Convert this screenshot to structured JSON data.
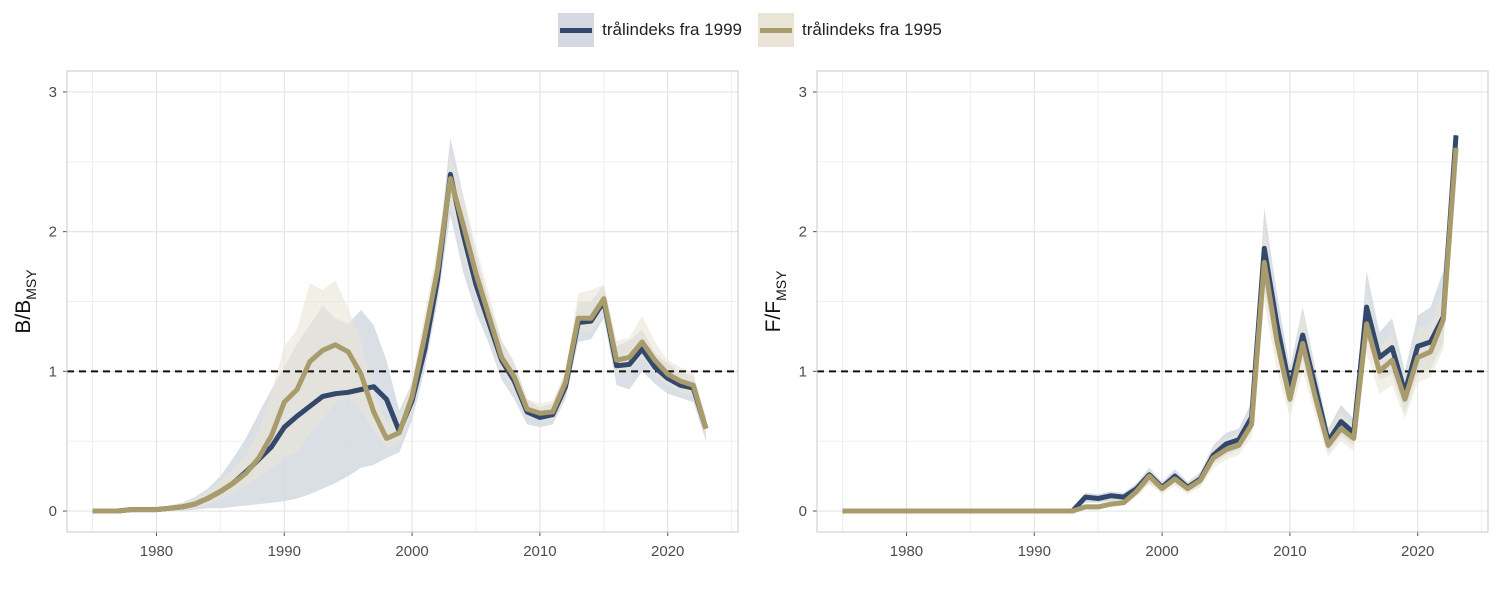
{
  "legend": {
    "items": [
      {
        "label": "trålindeks fra 1999",
        "color": "#34486b",
        "ribbon": "#d4d9e1"
      },
      {
        "label": "trålindeks fra 1995",
        "color": "#a89c6c",
        "ribbon": "#e9e4d6"
      }
    ]
  },
  "chart_data": [
    {
      "type": "line",
      "title": "",
      "ylabel_main": "B/B",
      "ylabel_sub": "MSY",
      "xlim": [
        1973,
        2025.5
      ],
      "ylim": [
        -0.15,
        3.15
      ],
      "x_ticks": [
        1980,
        1990,
        2000,
        2010,
        2020
      ],
      "y_ticks": [
        0,
        1,
        2,
        3
      ],
      "reference_line": 1,
      "grid": true,
      "legend_position": "top",
      "x": [
        1975,
        1976,
        1977,
        1978,
        1979,
        1980,
        1981,
        1982,
        1983,
        1984,
        1985,
        1986,
        1987,
        1988,
        1989,
        1990,
        1991,
        1992,
        1993,
        1994,
        1995,
        1996,
        1997,
        1998,
        1999,
        2000,
        2001,
        2002,
        2003,
        2004,
        2005,
        2006,
        2007,
        2008,
        2009,
        2010,
        2011,
        2012,
        2013,
        2014,
        2015,
        2016,
        2017,
        2018,
        2019,
        2020,
        2021,
        2022,
        2023
      ],
      "series": [
        {
          "name": "trålindeks fra 1999",
          "color": "#34486b",
          "values": [
            0,
            0,
            0,
            0.01,
            0.01,
            0.01,
            0.02,
            0.03,
            0.05,
            0.09,
            0.14,
            0.2,
            0.28,
            0.37,
            0.46,
            0.6,
            0.68,
            0.75,
            0.82,
            0.84,
            0.85,
            0.87,
            0.89,
            0.8,
            0.57,
            0.79,
            1.16,
            1.66,
            2.41,
            1.98,
            1.62,
            1.35,
            1.08,
            0.93,
            0.71,
            0.67,
            0.69,
            0.89,
            1.35,
            1.36,
            1.5,
            1.04,
            1.05,
            1.16,
            1.03,
            0.95,
            0.9,
            0.88,
            0.59
          ],
          "lower": [
            0,
            0,
            0,
            0,
            0,
            0,
            0,
            0,
            0.01,
            0.02,
            0.02,
            0.03,
            0.04,
            0.05,
            0.06,
            0.07,
            0.09,
            0.12,
            0.16,
            0.2,
            0.25,
            0.31,
            0.33,
            0.38,
            0.42,
            0.65,
            1.02,
            1.5,
            2.12,
            1.71,
            1.42,
            1.2,
            0.94,
            0.8,
            0.62,
            0.6,
            0.62,
            0.8,
            1.21,
            1.23,
            1.38,
            0.9,
            0.87,
            1.0,
            0.91,
            0.84,
            0.81,
            0.78,
            0.5
          ],
          "upper": [
            0.01,
            0.01,
            0.01,
            0.02,
            0.02,
            0.03,
            0.04,
            0.06,
            0.1,
            0.16,
            0.25,
            0.38,
            0.52,
            0.7,
            0.87,
            1.03,
            1.2,
            1.33,
            1.47,
            1.38,
            1.34,
            1.44,
            1.33,
            1.08,
            0.72,
            0.92,
            1.3,
            1.82,
            2.67,
            2.26,
            1.84,
            1.5,
            1.22,
            1.06,
            0.8,
            0.74,
            0.77,
            0.99,
            1.5,
            1.5,
            1.62,
            1.18,
            1.22,
            1.3,
            1.13,
            1.06,
            0.99,
            0.97,
            0.67
          ]
        },
        {
          "name": "trålindeks fra 1995",
          "color": "#a89c6c",
          "values": [
            0,
            0,
            0,
            0.01,
            0.01,
            0.01,
            0.02,
            0.03,
            0.05,
            0.09,
            0.14,
            0.2,
            0.27,
            0.38,
            0.54,
            0.78,
            0.87,
            1.07,
            1.15,
            1.19,
            1.14,
            0.98,
            0.71,
            0.52,
            0.56,
            0.82,
            1.26,
            1.73,
            2.38,
            2.05,
            1.7,
            1.4,
            1.1,
            0.96,
            0.73,
            0.7,
            0.71,
            0.92,
            1.38,
            1.38,
            1.52,
            1.08,
            1.1,
            1.21,
            1.08,
            0.98,
            0.93,
            0.9,
            0.59
          ],
          "lower": [
            0,
            0,
            0,
            0,
            0,
            0,
            0,
            0.01,
            0.02,
            0.05,
            0.08,
            0.13,
            0.18,
            0.24,
            0.3,
            0.38,
            0.42,
            0.56,
            0.65,
            0.78,
            0.81,
            0.72,
            0.58,
            0.45,
            0.48,
            0.7,
            1.1,
            1.58,
            2.2,
            1.84,
            1.54,
            1.28,
            0.99,
            0.88,
            0.68,
            0.66,
            0.65,
            0.85,
            1.29,
            1.28,
            1.4,
            0.98,
            1.0,
            1.1,
            0.98,
            0.9,
            0.85,
            0.82,
            0.52
          ],
          "upper": [
            0.01,
            0.01,
            0.01,
            0.02,
            0.02,
            0.03,
            0.04,
            0.06,
            0.09,
            0.14,
            0.21,
            0.3,
            0.4,
            0.58,
            0.85,
            1.18,
            1.3,
            1.63,
            1.58,
            1.65,
            1.45,
            1.22,
            0.86,
            0.64,
            0.66,
            0.94,
            1.42,
            1.9,
            2.56,
            2.26,
            1.9,
            1.56,
            1.22,
            1.07,
            0.8,
            0.77,
            0.79,
            1.0,
            1.56,
            1.58,
            1.62,
            1.22,
            1.24,
            1.4,
            1.21,
            1.08,
            1.03,
            0.99,
            0.66
          ]
        }
      ]
    },
    {
      "type": "line",
      "title": "",
      "ylabel_main": "F/F",
      "ylabel_sub": "MSY",
      "xlim": [
        1973,
        2025.5
      ],
      "ylim": [
        -0.15,
        3.15
      ],
      "x_ticks": [
        1980,
        1990,
        2000,
        2010,
        2020
      ],
      "y_ticks": [
        0,
        1,
        2,
        3
      ],
      "reference_line": 1,
      "grid": true,
      "legend_position": "top",
      "x": [
        1975,
        1976,
        1977,
        1978,
        1979,
        1980,
        1981,
        1982,
        1983,
        1984,
        1985,
        1986,
        1987,
        1988,
        1989,
        1990,
        1991,
        1992,
        1993,
        1994,
        1995,
        1996,
        1997,
        1998,
        1999,
        2000,
        2001,
        2002,
        2003,
        2004,
        2005,
        2006,
        2007,
        2008,
        2009,
        2010,
        2011,
        2012,
        2013,
        2014,
        2015,
        2016,
        2017,
        2018,
        2019,
        2020,
        2021,
        2022,
        2023
      ],
      "series": [
        {
          "name": "trålindeks fra 1999",
          "color": "#34486b",
          "values": [
            0,
            0,
            0,
            0,
            0,
            0,
            0,
            0,
            0,
            0,
            0,
            0,
            0,
            0,
            0,
            0,
            0,
            0,
            0,
            0.1,
            0.09,
            0.11,
            0.1,
            0.16,
            0.26,
            0.17,
            0.25,
            0.17,
            0.23,
            0.4,
            0.48,
            0.51,
            0.67,
            1.88,
            1.33,
            0.88,
            1.26,
            0.88,
            0.5,
            0.64,
            0.56,
            1.46,
            1.1,
            1.17,
            0.85,
            1.18,
            1.21,
            1.39,
            2.69
          ],
          "lower": [
            0,
            0,
            0,
            0,
            0,
            0,
            0,
            0,
            0,
            0,
            0,
            0,
            0,
            0,
            0,
            0,
            0,
            0,
            0,
            0.06,
            0.06,
            0.07,
            0.07,
            0.12,
            0.2,
            0.14,
            0.2,
            0.14,
            0.18,
            0.34,
            0.4,
            0.44,
            0.57,
            1.58,
            1.12,
            0.74,
            1.08,
            0.74,
            0.42,
            0.54,
            0.47,
            1.24,
            0.94,
            0.98,
            0.7,
            0.98,
            1.02,
            1.2,
            2.6
          ],
          "upper": [
            0,
            0,
            0,
            0,
            0,
            0,
            0,
            0,
            0,
            0,
            0,
            0,
            0,
            0,
            0,
            0,
            0,
            0,
            0,
            0.13,
            0.12,
            0.14,
            0.13,
            0.2,
            0.31,
            0.21,
            0.3,
            0.21,
            0.28,
            0.47,
            0.56,
            0.59,
            0.78,
            2.17,
            1.55,
            1.02,
            1.46,
            1.02,
            0.59,
            0.76,
            0.66,
            1.72,
            1.28,
            1.38,
            1.0,
            1.4,
            1.46,
            1.72,
            2.75
          ]
        },
        {
          "name": "trålindeks fra 1995",
          "color": "#a89c6c",
          "values": [
            0,
            0,
            0,
            0,
            0,
            0,
            0,
            0,
            0,
            0,
            0,
            0,
            0,
            0,
            0,
            0,
            0,
            0,
            0,
            0.03,
            0.03,
            0.05,
            0.06,
            0.14,
            0.25,
            0.16,
            0.23,
            0.16,
            0.22,
            0.38,
            0.44,
            0.47,
            0.62,
            1.78,
            1.21,
            0.8,
            1.2,
            0.81,
            0.47,
            0.59,
            0.52,
            1.34,
            1.0,
            1.08,
            0.8,
            1.1,
            1.14,
            1.37,
            2.6
          ],
          "lower": [
            0,
            0,
            0,
            0,
            0,
            0,
            0,
            0,
            0,
            0,
            0,
            0,
            0,
            0,
            0,
            0,
            0,
            0,
            0,
            0.01,
            0.01,
            0.03,
            0.04,
            0.1,
            0.19,
            0.12,
            0.18,
            0.12,
            0.17,
            0.31,
            0.37,
            0.4,
            0.53,
            1.5,
            1.0,
            0.67,
            1.0,
            0.68,
            0.39,
            0.5,
            0.43,
            1.13,
            0.84,
            0.9,
            0.66,
            0.92,
            0.96,
            1.16,
            2.5
          ],
          "upper": [
            0,
            0,
            0,
            0,
            0,
            0,
            0,
            0,
            0,
            0,
            0,
            0,
            0,
            0,
            0,
            0,
            0,
            0,
            0,
            0.05,
            0.05,
            0.07,
            0.08,
            0.18,
            0.3,
            0.2,
            0.28,
            0.2,
            0.27,
            0.45,
            0.52,
            0.55,
            0.72,
            2.06,
            1.42,
            0.95,
            1.42,
            0.96,
            0.56,
            0.7,
            0.62,
            1.58,
            1.18,
            1.28,
            0.95,
            1.3,
            1.34,
            1.6,
            2.7
          ]
        }
      ]
    }
  ]
}
